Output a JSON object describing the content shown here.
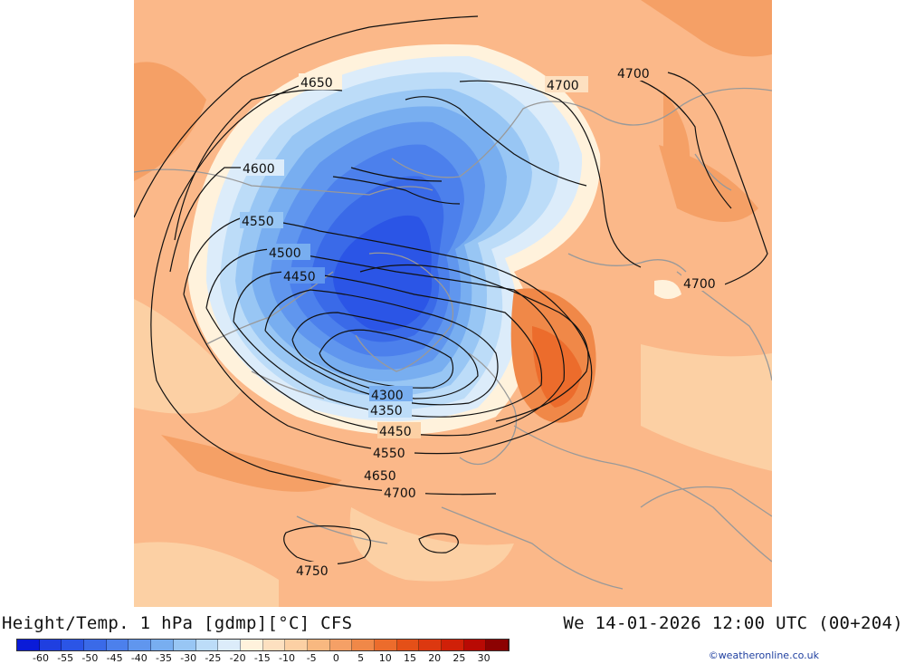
{
  "footer": {
    "title": "Height/Temp. 1 hPa [gdmp][°C] CFS",
    "valid_time": "We 14-01-2026 12:00 UTC (00+204)"
  },
  "credit": "©weatheronline.co.uk",
  "legend": {
    "colors": [
      "#0a1bd8",
      "#1f3fe0",
      "#2b55e6",
      "#3a6ae8",
      "#4c80ec",
      "#6096ee",
      "#78aef0",
      "#98c6f4",
      "#bcdcf8",
      "#dcecfa",
      "#fff2dc",
      "#fde0c0",
      "#fcd0a4",
      "#f8b880",
      "#f5a066",
      "#f08848",
      "#ec6c2c",
      "#e45018",
      "#dc3810",
      "#d02008",
      "#b80a04",
      "#8c0202"
    ],
    "ticks": [
      "-60",
      "-55",
      "-50",
      "-45",
      "-40",
      "-35",
      "-30",
      "-25",
      "-20",
      "-15",
      "-10",
      "-5",
      "0",
      "5",
      "10",
      "15",
      "20",
      "25",
      "30"
    ]
  },
  "map": {
    "contour_labels": [
      "4650",
      "4700",
      "4700",
      "4600",
      "4550",
      "4500",
      "4450",
      "4300",
      "4350",
      "4450",
      "4550",
      "4650",
      "4700",
      "4700",
      "4750"
    ]
  }
}
